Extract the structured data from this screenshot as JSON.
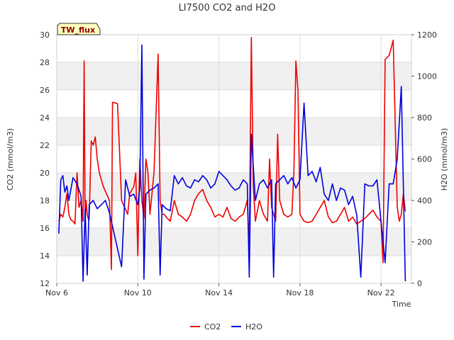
{
  "chart_data": {
    "type": "line",
    "title": "LI7500 CO2 and H2O",
    "badge": "TW_flux",
    "xlabel": "Time",
    "ylabel_left": "CO2 (mmol/m3)",
    "ylabel_right": "H2O (mmol/m3)",
    "x_tick_labels": [
      "Nov 6",
      "Nov 10",
      "Nov 14",
      "Nov 18",
      "Nov 22"
    ],
    "x_tick_days": [
      6,
      10,
      14,
      18,
      22
    ],
    "xlim_days": [
      6,
      23.5
    ],
    "ylim_left": [
      12,
      30
    ],
    "ylim_right": [
      0,
      1200
    ],
    "y_ticks_left": [
      12,
      14,
      16,
      18,
      20,
      22,
      24,
      26,
      28,
      30
    ],
    "y_ticks_right": [
      0,
      200,
      400,
      600,
      800,
      1000,
      1200
    ],
    "grid": true,
    "legend_position": "bottom-center",
    "colors": {
      "CO2": "#ee0000",
      "H2O": "#0000dd",
      "band": "#f0f0f0",
      "badge_bg": "#ffffc0"
    },
    "series": [
      {
        "name": "CO2",
        "axis": "left",
        "color": "#ee0000",
        "x": [
          6.1,
          6.2,
          6.3,
          6.4,
          6.5,
          6.6,
          6.7,
          6.8,
          6.9,
          7.0,
          7.1,
          7.2,
          7.3,
          7.35,
          7.4,
          7.45,
          7.5,
          7.55,
          7.6,
          7.7,
          7.8,
          7.9,
          8.0,
          8.1,
          8.3,
          8.6,
          8.7,
          8.75,
          8.8,
          9.0,
          9.2,
          9.5,
          9.6,
          9.8,
          9.9,
          10.0,
          10.1,
          10.2,
          10.3,
          10.4,
          10.5,
          10.6,
          10.8,
          11.0,
          11.1,
          11.2,
          11.3,
          11.4,
          11.6,
          11.8,
          12.0,
          12.2,
          12.4,
          12.6,
          12.8,
          13.0,
          13.2,
          13.4,
          13.6,
          13.8,
          14.0,
          14.2,
          14.4,
          14.6,
          14.8,
          15.0,
          15.2,
          15.4,
          15.5,
          15.6,
          15.7,
          15.8,
          16.0,
          16.2,
          16.4,
          16.5,
          16.6,
          16.8,
          16.9,
          17.0,
          17.2,
          17.4,
          17.6,
          17.7,
          17.8,
          17.9,
          18.0,
          18.2,
          18.4,
          18.6,
          18.8,
          19.0,
          19.2,
          19.4,
          19.6,
          19.8,
          20.0,
          20.2,
          20.4,
          20.6,
          20.8,
          21.0,
          21.2,
          21.4,
          21.6,
          21.8,
          22.0,
          22.1,
          22.2,
          22.4,
          22.6,
          22.8,
          22.9,
          23.0,
          23.1,
          23.2
        ],
        "y": [
          16.5,
          17.0,
          16.8,
          17.5,
          18.5,
          17.0,
          16.6,
          16.5,
          16.3,
          20.0,
          17.5,
          18.0,
          16.5,
          28.1,
          16.5,
          18.0,
          17.0,
          16.7,
          16.6,
          22.3,
          22.0,
          22.6,
          21.0,
          20.0,
          19.0,
          18.0,
          13.0,
          25.1,
          25.1,
          25.0,
          18.0,
          17.0,
          18.5,
          19.0,
          20.0,
          14.0,
          21.0,
          18.0,
          16.7,
          21.0,
          20.0,
          17.0,
          20.0,
          28.6,
          18.0,
          17.0,
          17.0,
          16.8,
          16.5,
          18.0,
          17.0,
          16.8,
          16.5,
          17.0,
          18.0,
          18.5,
          18.8,
          18.0,
          17.5,
          16.8,
          17.0,
          16.8,
          17.5,
          16.7,
          16.5,
          16.8,
          17.0,
          18.0,
          14.5,
          29.8,
          19.0,
          16.5,
          18.0,
          17.0,
          16.5,
          21.0,
          17.5,
          16.5,
          22.8,
          18.0,
          17.0,
          16.8,
          17.0,
          20.0,
          28.1,
          26.0,
          17.0,
          16.5,
          16.4,
          16.5,
          17.0,
          17.5,
          18.0,
          16.8,
          16.4,
          16.5,
          17.0,
          17.5,
          16.5,
          16.8,
          16.3,
          16.5,
          16.7,
          17.0,
          17.3,
          16.8,
          16.5,
          13.5,
          28.2,
          28.5,
          29.6,
          17.5,
          16.5,
          17.0,
          18.5,
          17.2
        ]
      },
      {
        "name": "H2O",
        "axis": "right",
        "color": "#0000dd",
        "x": [
          6.1,
          6.2,
          6.3,
          6.4,
          6.5,
          6.6,
          6.8,
          7.0,
          7.2,
          7.3,
          7.4,
          7.5,
          7.6,
          7.8,
          8.0,
          8.2,
          8.4,
          8.6,
          9.2,
          9.4,
          9.6,
          9.8,
          10.0,
          10.1,
          10.2,
          10.3,
          10.4,
          10.6,
          10.8,
          11.0,
          11.1,
          11.2,
          11.4,
          11.6,
          11.8,
          12.0,
          12.2,
          12.4,
          12.6,
          12.8,
          13.0,
          13.2,
          13.4,
          13.6,
          13.8,
          14.0,
          14.2,
          14.4,
          14.6,
          14.8,
          15.0,
          15.2,
          15.4,
          15.5,
          15.6,
          15.8,
          16.0,
          16.2,
          16.4,
          16.6,
          16.7,
          16.8,
          17.0,
          17.2,
          17.4,
          17.6,
          17.8,
          18.0,
          18.2,
          18.4,
          18.6,
          18.8,
          19.0,
          19.2,
          19.4,
          19.6,
          19.8,
          20.0,
          20.2,
          20.4,
          20.6,
          20.8,
          21.0,
          21.2,
          21.4,
          21.6,
          21.8,
          22.0,
          22.2,
          22.4,
          22.6,
          22.8,
          23.0,
          23.2
        ],
        "y": [
          240,
          500,
          520,
          440,
          470,
          400,
          510,
          480,
          420,
          10,
          360,
          40,
          380,
          400,
          360,
          380,
          400,
          340,
          80,
          500,
          420,
          430,
          380,
          460,
          1150,
          20,
          430,
          450,
          460,
          480,
          40,
          380,
          360,
          350,
          520,
          480,
          510,
          470,
          460,
          500,
          490,
          520,
          500,
          460,
          480,
          540,
          520,
          500,
          470,
          450,
          460,
          500,
          480,
          30,
          720,
          400,
          480,
          500,
          460,
          500,
          30,
          480,
          500,
          520,
          480,
          510,
          460,
          500,
          870,
          520,
          540,
          490,
          560,
          430,
          400,
          480,
          400,
          460,
          450,
          380,
          420,
          330,
          30,
          480,
          470,
          470,
          500,
          300,
          100,
          480,
          480,
          600,
          950,
          10
        ]
      }
    ]
  }
}
